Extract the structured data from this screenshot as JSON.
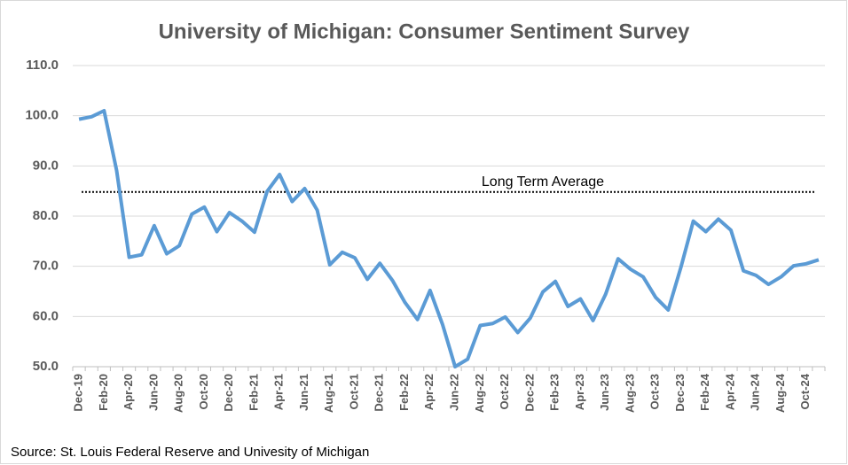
{
  "chart_data": {
    "type": "line",
    "title": "University of Michigan: Consumer Sentiment Survey",
    "source": "Source: St. Louis Federal Reserve and Univesity of Michigan",
    "categories": [
      "Dec-19",
      null,
      "Feb-20",
      null,
      "Apr-20",
      null,
      "Jun-20",
      null,
      "Aug-20",
      null,
      "Oct-20",
      null,
      "Dec-20",
      null,
      "Feb-21",
      null,
      "Apr-21",
      null,
      "Jun-21",
      null,
      "Aug-21",
      null,
      "Oct-21",
      null,
      "Dec-21",
      null,
      "Feb-22",
      null,
      "Apr-22",
      null,
      "Jun-22",
      null,
      "Aug-22",
      null,
      "Oct-22",
      null,
      "Dec-22",
      null,
      "Feb-23",
      null,
      "Apr-23",
      null,
      "Jun-23",
      null,
      "Aug-23",
      null,
      "Oct-23",
      null,
      "Dec-23",
      null,
      "Feb-24",
      null,
      "Apr-24",
      null,
      "Jun-24",
      null,
      "Aug-24",
      null,
      "Oct-24",
      null
    ],
    "values": [
      99.3,
      99.8,
      101.0,
      89.1,
      71.8,
      72.3,
      78.1,
      72.5,
      74.1,
      80.4,
      81.8,
      76.9,
      80.7,
      79.0,
      76.8,
      84.9,
      88.3,
      82.9,
      85.5,
      81.2,
      70.3,
      72.8,
      71.7,
      67.4,
      70.6,
      67.2,
      62.8,
      59.4,
      65.2,
      58.4,
      50.0,
      51.5,
      58.2,
      58.6,
      59.9,
      56.8,
      59.7,
      64.9,
      67.0,
      62.0,
      63.5,
      59.2,
      64.4,
      71.5,
      69.4,
      67.9,
      63.8,
      61.3,
      69.7,
      79.0,
      76.9,
      79.4,
      77.2,
      69.1,
      68.2,
      66.4,
      67.9,
      70.1,
      70.5,
      71.3
    ],
    "color": "#5b9bd5",
    "ylim": [
      50,
      110
    ],
    "yticks": [
      {
        "value": 50,
        "label": "50.0"
      },
      {
        "value": 60,
        "label": "60.0"
      },
      {
        "value": 70,
        "label": "70.0"
      },
      {
        "value": 80,
        "label": "80.0"
      },
      {
        "value": 90,
        "label": "90.0"
      },
      {
        "value": 100,
        "label": "100.0"
      },
      {
        "value": 110,
        "label": "110.0"
      }
    ],
    "grid": true,
    "reference_line": {
      "label": "Long Term Average",
      "value": 84.8
    }
  }
}
